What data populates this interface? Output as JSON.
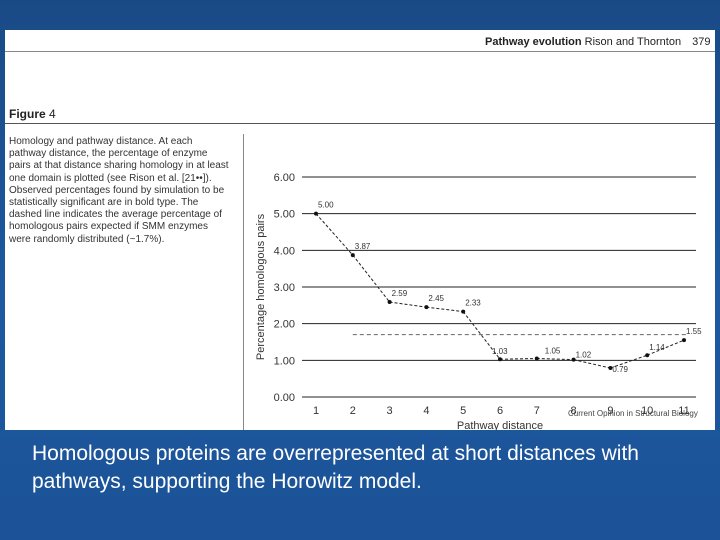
{
  "header": {
    "title": "Pathway evolution",
    "authors": "Rison and Thornton",
    "page": "379"
  },
  "figure": {
    "label_bold": "Figure",
    "label_num": "4",
    "caption": "Homology and pathway distance. At each pathway distance, the percentage of enzyme pairs at that distance sharing homology in at least one domain is plotted (see Rison et al. [21••]). Observed percentages found by simulation to be statistically significant are in bold type. The dashed line indicates the average percentage of homologous pairs expected if SMM enzymes were randomly distributed (~1.7%).",
    "credit": "Current Opinion in Structural Biology"
  },
  "chart_data": {
    "type": "line",
    "xlabel": "Pathway distance",
    "ylabel": "Percentage homologous pairs",
    "x": [
      1,
      2,
      3,
      4,
      5,
      6,
      7,
      8,
      9,
      10,
      11
    ],
    "y": [
      5.0,
      3.87,
      2.59,
      2.45,
      2.33,
      1.03,
      1.05,
      1.02,
      0.79,
      1.14,
      1.55
    ],
    "data_labels": [
      "5.00",
      "3.87",
      "2.59",
      "2.45",
      "2.33",
      "1.03",
      "1.05",
      "1.02",
      "0.79",
      "1.14",
      "1.55"
    ],
    "x_ticks": [
      "1",
      "2",
      "3",
      "4",
      "5",
      "6",
      "7",
      "8",
      "9",
      "10",
      "11"
    ],
    "y_ticks": [
      "0.00",
      "1.00",
      "2.00",
      "3.00",
      "4.00",
      "5.00",
      "6.00"
    ],
    "ylim": [
      0,
      6
    ],
    "xlim": [
      1,
      11
    ],
    "reference_line": {
      "value": 1.7,
      "style": "dashed",
      "from_x": 2
    },
    "grid": "horizontal",
    "legend": "none",
    "line_color": "#222222"
  },
  "slide": {
    "caption": "Homologous proteins are overrepresented at short distances with\npathways, supporting the Horowitz model."
  }
}
